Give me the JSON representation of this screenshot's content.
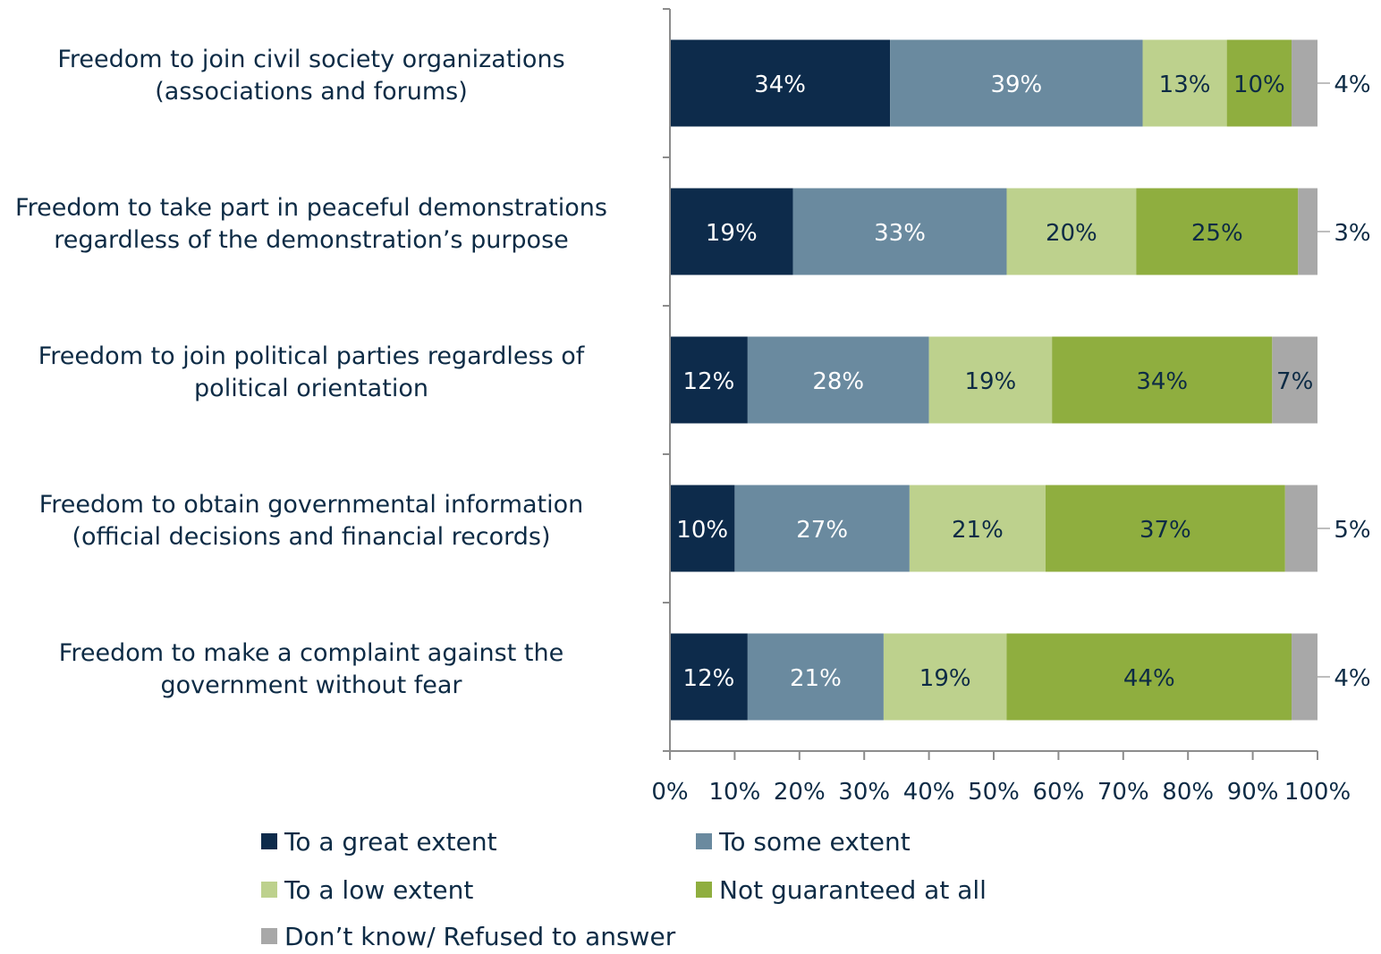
{
  "chart_data": {
    "type": "bar",
    "orientation": "horizontal",
    "stacked": true,
    "categories": [
      [
        "Freedom to join civil society organizations",
        "(associations and forums)"
      ],
      [
        "Freedom to take part in peaceful demonstrations",
        "regardless of the demonstration’s purpose"
      ],
      [
        "Freedom to join political parties regardless of",
        "political orientation"
      ],
      [
        "Freedom to obtain governmental information",
        "(official decisions and financial records)"
      ],
      [
        "Freedom to make a complaint against the",
        "government without fear"
      ]
    ],
    "series": [
      {
        "name": "To a great extent",
        "color": "#0d2b4b",
        "label_color": "#ffffff",
        "values": [
          34,
          19,
          12,
          10,
          12
        ]
      },
      {
        "name": "To some extent",
        "color": "#6a8a9f",
        "label_color": "#ffffff",
        "values": [
          39,
          33,
          28,
          27,
          21
        ]
      },
      {
        "name": "To a low extent",
        "color": "#bdd18d",
        "label_color": "#0d2b45",
        "values": [
          13,
          20,
          19,
          21,
          19
        ]
      },
      {
        "name": "Not guaranteed at all",
        "color": "#8fae3f",
        "label_color": "#0d2b45",
        "values": [
          10,
          25,
          34,
          37,
          44
        ]
      },
      {
        "name": "Don’t know/ Refused to answer",
        "color": "#a8a8a8",
        "label_color": "#0d2b45",
        "values": [
          4,
          3,
          7,
          5,
          4
        ]
      }
    ],
    "value_suffix": "%",
    "xlim": [
      0,
      100
    ],
    "x_ticks": [
      "0%",
      "10%",
      "20%",
      "30%",
      "40%",
      "50%",
      "60%",
      "70%",
      "80%",
      "90%",
      "100%"
    ],
    "legend_position": "bottom",
    "grid": false
  }
}
